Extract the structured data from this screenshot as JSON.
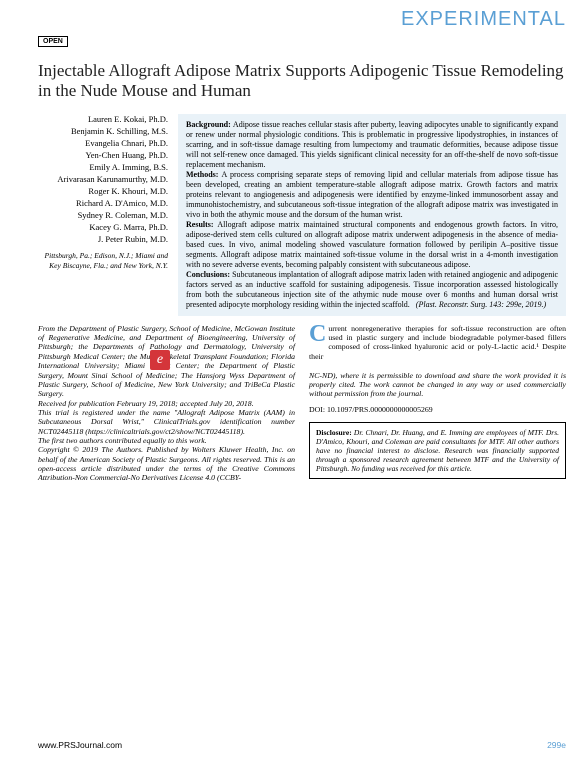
{
  "header": {
    "category": "EXPERIMENTAL",
    "open": "OPEN"
  },
  "title": "Injectable Allograft Adipose Matrix Supports Adipogenic Tissue Remodeling in the Nude Mouse and Human",
  "authors": [
    "Lauren E. Kokai, Ph.D.",
    "Benjamin K. Schilling, M.S.",
    "Evangelia Chnari, Ph.D.",
    "Yen-Chen Huang, Ph.D.",
    "Emily A. Imming, B.S.",
    "Arivarasan Karunamurthy, M.D.",
    "Roger K. Khouri, M.D.",
    "Richard A. D'Amico, M.D.",
    "Sydney R. Coleman, M.D.",
    "Kacey G. Marra, Ph.D.",
    "J. Peter Rubin, M.D."
  ],
  "affil": "Pittsburgh, Pa.; Edison, N.J.; Miami and Key Biscayne, Fla.; and New York, N.Y.",
  "abstract": {
    "background": "Adipose tissue reaches cellular stasis after puberty, leaving adipocytes unable to significantly expand or renew under normal physiologic conditions. This is problematic in progressive lipodystrophies, in instances of scarring, and in soft-tissue damage resulting from lumpectomy and traumatic deformities, because adipose tissue will not self-renew once damaged. This yields significant clinical necessity for an off-the-shelf de novo soft-tissue replacement mechanism.",
    "methods": "A process comprising separate steps of removing lipid and cellular materials from adipose tissue has been developed, creating an ambient temperature-stable allograft adipose matrix. Growth factors and matrix proteins relevant to angiogenesis and adipogenesis were identified by enzyme-linked immunosorbent assay and immunohistochemistry, and subcutaneous soft-tissue integration of the allograft adipose matrix was investigated in vivo in both the athymic mouse and the dorsum of the human wrist.",
    "results": "Allograft adipose matrix maintained structural components and endogenous growth factors. In vitro, adipose-derived stem cells cultured on allograft adipose matrix underwent adipogenesis in the absence of media-based cues. In vivo, animal modeling showed vasculature formation followed by perilipin A–positive tissue segments. Allograft adipose matrix maintained soft-tissue volume in the dorsal wrist in a 4-month investigation with no severe adverse events, becoming palpably consistent with subcutaneous adipose.",
    "conclusions": "Subcutaneous implantation of allograft adipose matrix laden with retained angiogenic and adipogenic factors served as an inductive scaffold for sustaining adipogenesis. Tissue incorporation assessed histologically from both the subcutaneous injection site of the athymic nude mouse over 6 months and human dorsal wrist presented adipocyte morphology residing within the injected scaffold.",
    "cite": "(Plast. Reconstr. Surg. 143: 299e, 2019.)"
  },
  "colL": {
    "p1": "From the Department of Plastic Surgery, School of Medicine, McGowan Institute of Regenerative Medicine, and Department of Bioengineering, University of Pittsburgh; the Departments of Pathology and Dermatology, University of Pittsburgh Medical Center; the Musculoskeletal Transplant Foundation; Florida International University; Miami Breast Center; the Department of Plastic Surgery, Mount Sinai School of Medicine; The Hansjorg Wyss Department of Plastic Surgery, School of Medicine, New York University; and TriBeCa Plastic Surgery.",
    "p2": "Received for publication February 19, 2018; accepted July 20, 2018.",
    "p3": "This trial is registered under the name \"Allograft Adipose Matrix (AAM) in Subcutaneous Dorsal Wrist,\" ClinicalTrials.gov identification number NCT02445118 (https://clinicaltrials.gov/ct2/show/NCT02445118).",
    "p4": "The first two authors contributed equally to this work.",
    "p5": "Copyright © 2019 The Authors. Published by Wolters Kluwer Health, Inc. on behalf of the American Society of Plastic Surgeons. All rights reserved. This is an open-access article distributed under the terms of the Creative Commons Attribution-Non Commercial-No Derivatives License 4.0 (CCBY-"
  },
  "colR": {
    "drop": "Current nonregenerative therapies for soft-tissue reconstruction are often used in plastic surgery and include biodegradable polymer-based fillers composed of cross-linked hyaluronic acid or poly-L-lactic acid.¹ Despite their",
    "note": "NC-ND), where it is permissible to download and share the work provided it is properly cited. The work cannot be changed in any way or used commercially without permission from the journal.",
    "doi": "DOI: 10.1097/PRS.0000000000005269"
  },
  "disclosure": "Dr. Chnari, Dr. Huang, and E. Imming are employees of MTF. Drs. D'Amico, Khouri, and Coleman are paid consultants for MTF. All other authors have no financial interest to disclose. Research was financially supported through a sponsored research agreement between MTF and the University of Pittsburgh. No funding was received for this article.",
  "footer": {
    "url": "www.PRSJournal.com",
    "page": "299e"
  },
  "elogo": "e"
}
